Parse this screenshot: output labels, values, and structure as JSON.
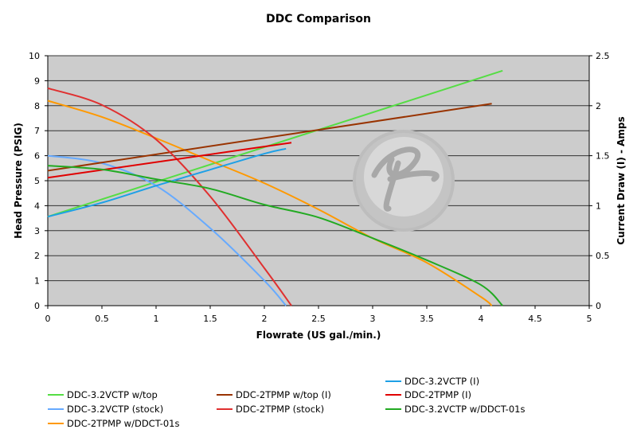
{
  "chart_data": {
    "type": "line",
    "title": "DDC Comparison",
    "xlabel": "Flowrate (US gal./min.)",
    "ylabel": "Head Pressure (PSIG)",
    "y2label": "Current Draw (I) - Amps",
    "xlim": [
      0,
      5
    ],
    "ylim": [
      0,
      10
    ],
    "y2lim": [
      0,
      2.5
    ],
    "xticks": [
      "0",
      "0.5",
      "1",
      "1.5",
      "2",
      "2.5",
      "3",
      "3.5",
      "4",
      "4.5",
      "5"
    ],
    "yticks": [
      "0",
      "1",
      "2",
      "3",
      "4",
      "5",
      "6",
      "7",
      "8",
      "9",
      "10"
    ],
    "y2ticks": [
      "0",
      "0.5",
      "1",
      "1.5",
      "2",
      "2.5"
    ],
    "grid": "horizontal",
    "legend": "bottom",
    "series": [
      {
        "name": "DDC-3.2VCTP w/top",
        "color": "#55dd44",
        "axis": "right",
        "x": [
          0,
          4.2
        ],
        "y": [
          0.89,
          2.35
        ]
      },
      {
        "name": "DDC-3.2VCTP (stock)",
        "color": "#66aaff",
        "axis": "left",
        "x": [
          0,
          0.5,
          1,
          1.5,
          2,
          2.2
        ],
        "y": [
          6.0,
          5.7,
          4.8,
          3.1,
          1.0,
          0
        ]
      },
      {
        "name": "DDC-2TPMP w/DDCT-01s",
        "color": "#ff9900",
        "axis": "left",
        "x": [
          0,
          0.5,
          1,
          1.5,
          2,
          2.5,
          3,
          3.5,
          4,
          4.1
        ],
        "y": [
          8.2,
          7.55,
          6.7,
          5.8,
          4.9,
          3.85,
          2.7,
          1.72,
          0.35,
          0
        ]
      },
      {
        "name": "DDC-2TPMP w/top (I)",
        "color": "#993300",
        "axis": "right",
        "x": [
          0,
          4.1
        ],
        "y": [
          1.35,
          2.02
        ]
      },
      {
        "name": "DDC-2TPMP (stock)",
        "color": "#e03030",
        "axis": "left",
        "x": [
          0,
          0.5,
          1,
          1.5,
          2,
          2.25
        ],
        "y": [
          8.7,
          8.03,
          6.65,
          4.37,
          1.5,
          0
        ]
      },
      {
        "name": "DDC-3.2VCTP (I)",
        "color": "#1ea0e6",
        "axis": "right",
        "x": [
          0,
          0.5,
          1,
          1.5,
          2,
          2.2
        ],
        "y": [
          0.89,
          1.03,
          1.2,
          1.36,
          1.52,
          1.57
        ]
      },
      {
        "name": "DDC-2TPMP (I)",
        "color": "#e00000",
        "axis": "right",
        "x": [
          0,
          2.25
        ],
        "y": [
          1.28,
          1.63
        ]
      },
      {
        "name": "DDC-3.2VCTP w/DDCT-01s",
        "color": "#22aa22",
        "axis": "left",
        "x": [
          0,
          0.5,
          1,
          1.5,
          2,
          2.5,
          3,
          3.5,
          4,
          4.2
        ],
        "y": [
          5.6,
          5.45,
          5.06,
          4.68,
          4.04,
          3.53,
          2.7,
          1.82,
          0.83,
          0
        ]
      }
    ],
    "plot_background": "#cccccc"
  }
}
